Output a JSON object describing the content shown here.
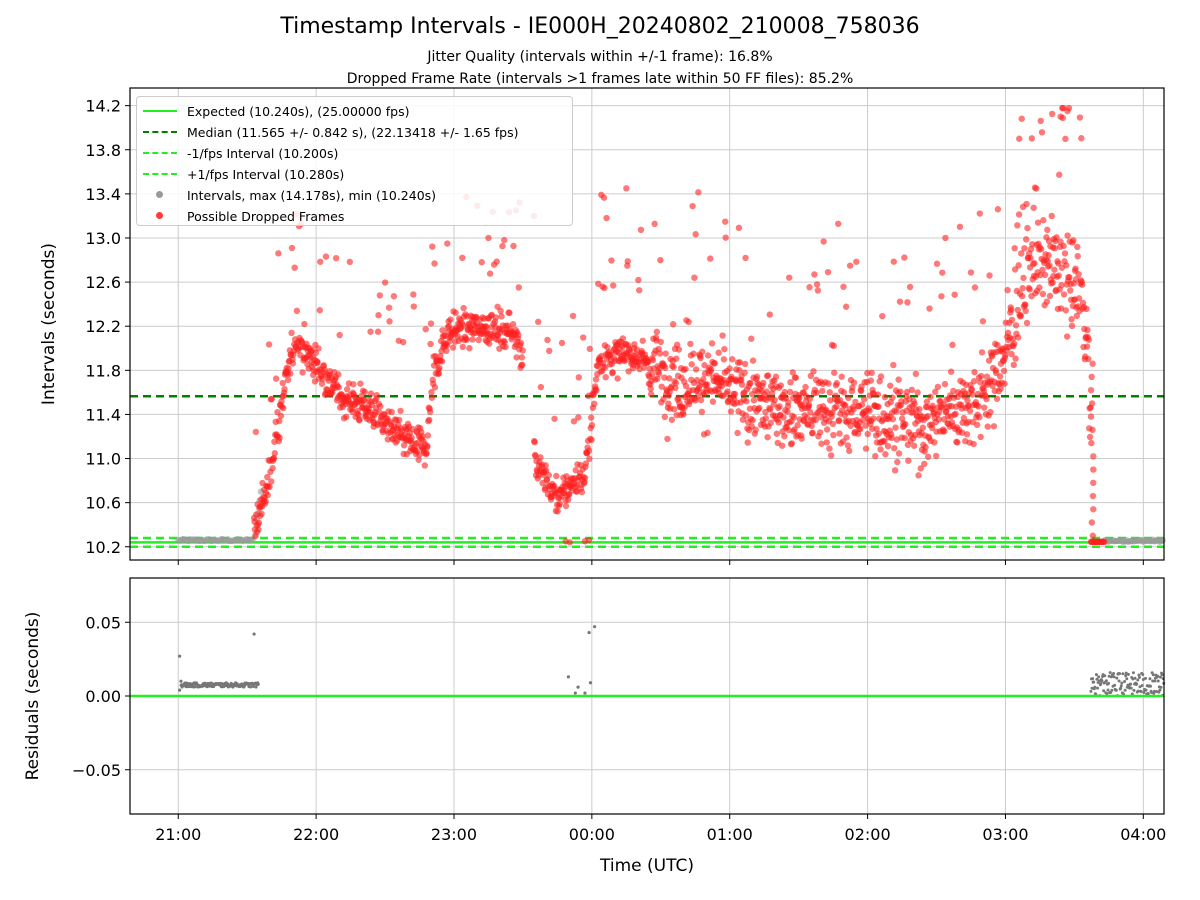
{
  "title": "Timestamp Intervals - IE000H_20240802_210008_758036",
  "subtitle_1": "Jitter Quality (intervals within +/-1 frame): 16.8%",
  "subtitle_2": "Dropped Frame Rate (intervals >1 frames late within 50 FF files): 85.2%",
  "colors": {
    "expected": "#22ee22",
    "median": "#008000",
    "fps_band": "#22ee22",
    "intervals": "#999999",
    "dropped": "#ff2020",
    "residuals": "#777777",
    "grid": "#cccccc"
  },
  "legend": {
    "expected": "Expected (10.240s), (25.00000 fps)",
    "median": "Median (11.565 +/- 0.842 s), (22.13418 +/- 1.65 fps)",
    "minus_fps": "-1/fps Interval (10.200s)",
    "plus_fps": "+1/fps Interval (10.280s)",
    "intervals": "Intervals, max (14.178s), min (10.240s)",
    "dropped": "Possible Dropped Frames"
  },
  "chart_data": [
    {
      "type": "scatter",
      "ylabel": "Intervals (seconds)",
      "xlabel": "",
      "x_range_hours_utc": [
        20.65,
        28.15
      ],
      "ylim": [
        10.08,
        14.36
      ],
      "y_ticks": [
        "10.2",
        "10.6",
        "11.0",
        "11.4",
        "11.8",
        "12.2",
        "12.6",
        "13.0",
        "13.4",
        "13.8",
        "14.2"
      ],
      "grid": true,
      "legend_position": "top-left",
      "reference_lines": {
        "expected": 10.24,
        "median": 11.565,
        "minus_1_fps": 10.2,
        "plus_1_fps": 10.28
      },
      "series": [
        {
          "name": "Intervals, max (14.178s), min (10.240s)",
          "trend_points_hours_vs_seconds": [
            [
              21.0,
              10.25
            ],
            [
              21.55,
              10.25
            ],
            [
              21.58,
              10.5
            ],
            [
              21.6,
              10.7
            ]
          ]
        },
        {
          "name": "Possible Dropped Frames",
          "trend_points_hours_vs_seconds": [
            [
              21.55,
              10.35
            ],
            [
              21.65,
              10.75
            ],
            [
              21.75,
              11.5
            ],
            [
              21.85,
              12.1
            ],
            [
              22.0,
              11.85
            ],
            [
              22.2,
              11.55
            ],
            [
              22.4,
              11.45
            ],
            [
              22.6,
              11.2
            ],
            [
              22.8,
              11.1
            ],
            [
              22.85,
              11.75
            ],
            [
              22.95,
              12.15
            ],
            [
              23.2,
              12.2
            ],
            [
              23.45,
              12.15
            ],
            [
              23.55,
              11.7
            ],
            [
              23.6,
              10.9
            ],
            [
              23.75,
              10.65
            ],
            [
              23.95,
              10.85
            ],
            [
              24.05,
              11.9
            ],
            [
              24.3,
              11.95
            ],
            [
              24.6,
              11.7
            ],
            [
              24.9,
              11.7
            ],
            [
              25.2,
              11.5
            ],
            [
              25.5,
              11.45
            ],
            [
              25.8,
              11.45
            ],
            [
              26.1,
              11.4
            ],
            [
              26.4,
              11.3
            ],
            [
              26.6,
              11.45
            ],
            [
              26.8,
              11.55
            ],
            [
              26.95,
              11.8
            ],
            [
              27.05,
              12.2
            ],
            [
              27.2,
              12.8
            ],
            [
              27.4,
              12.7
            ],
            [
              27.55,
              12.55
            ],
            [
              27.6,
              12.0
            ],
            [
              27.63,
              10.4
            ],
            [
              27.65,
              10.24
            ],
            [
              27.72,
              10.24
            ]
          ],
          "y_range_seconds": [
            10.24,
            14.178
          ]
        }
      ]
    },
    {
      "type": "scatter",
      "ylabel": "Residuals (seconds)",
      "xlabel": "Time (UTC)",
      "ylim": [
        -0.08,
        0.08
      ],
      "y_ticks": [
        "−0.05",
        "0.00",
        "0.05"
      ],
      "x_ticks": [
        "21:00",
        "22:00",
        "23:00",
        "00:00",
        "01:00",
        "02:00",
        "03:00",
        "04:00"
      ],
      "grid": true,
      "series": [
        {
          "name": "residuals",
          "points_hours_vs_seconds": [
            [
              21.01,
              0.027
            ],
            [
              21.01,
              0.004
            ],
            [
              21.02,
              0.01
            ],
            [
              21.55,
              0.042
            ],
            [
              21.58,
              0.008
            ],
            [
              23.83,
              0.013
            ],
            [
              23.88,
              0.002
            ],
            [
              23.9,
              0.006
            ],
            [
              23.95,
              0.002
            ],
            [
              23.98,
              0.043
            ],
            [
              23.99,
              0.009
            ],
            [
              24.02,
              0.047
            ]
          ],
          "bands": [
            {
              "x_range": [
                21.02,
                21.58
              ],
              "y_range": [
                0.006,
                0.009
              ]
            },
            {
              "x_range": [
                27.62,
                28.15
              ],
              "y_range": [
                0.0,
                0.016
              ]
            }
          ]
        }
      ],
      "reference_line": 0.0
    }
  ]
}
